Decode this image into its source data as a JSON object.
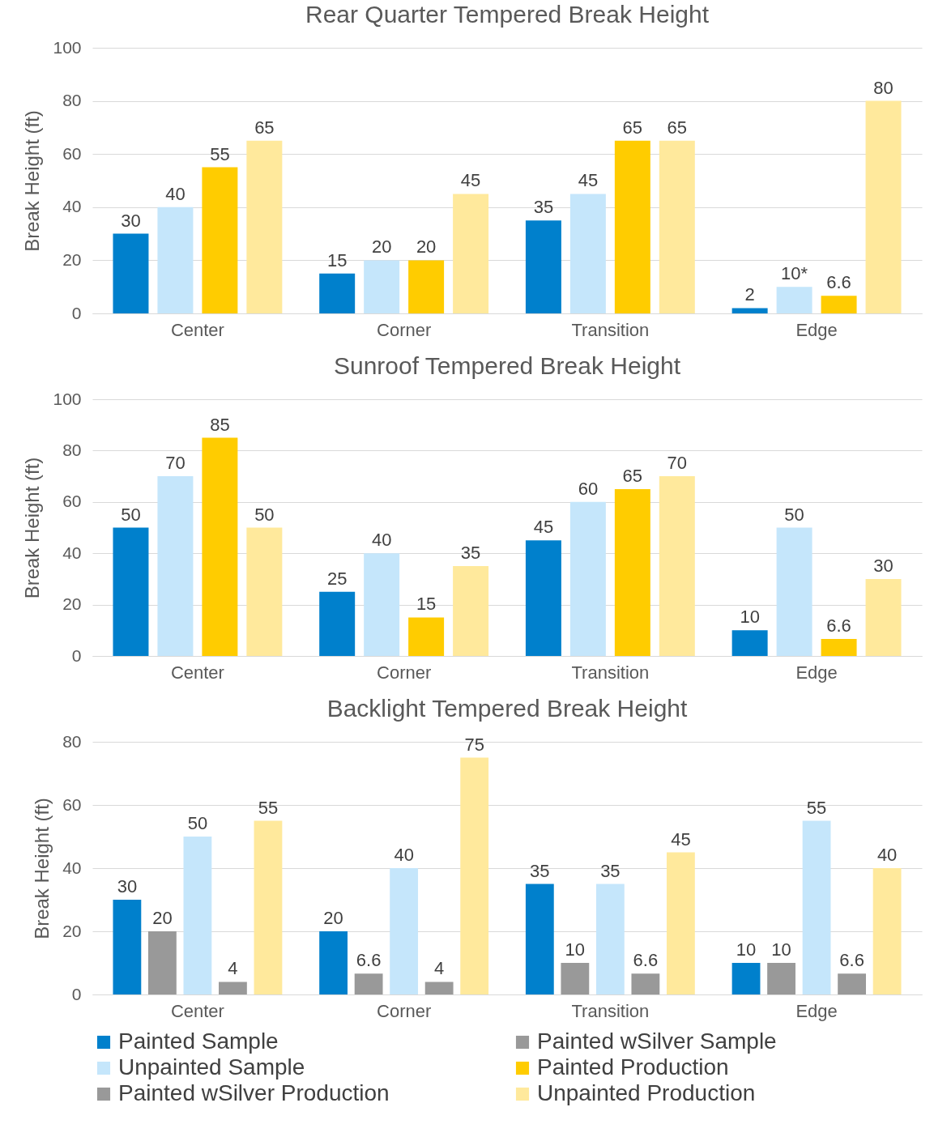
{
  "chart_data": [
    {
      "type": "bar",
      "title": "Rear Quarter Tempered Break Height",
      "ylabel": "Break Height (ft)",
      "categories": [
        "Center",
        "Corner",
        "Transition",
        "Edge"
      ],
      "ylim": [
        0,
        100
      ],
      "yticks": [
        0,
        20,
        40,
        60,
        80,
        100
      ],
      "grid": "y",
      "legend": false,
      "data_labels": true,
      "series": [
        {
          "color": "#0080cc",
          "values": [
            30,
            15,
            35,
            2
          ]
        },
        {
          "color": "#c5e6fb",
          "values": [
            40,
            20,
            45,
            10
          ],
          "value_labels": [
            "40",
            "20",
            "45",
            "10*"
          ]
        },
        {
          "color": "#ffcc00",
          "values": [
            55,
            20,
            65,
            6.6
          ]
        },
        {
          "color": "#ffe99c",
          "values": [
            65,
            45,
            65,
            80
          ]
        }
      ]
    },
    {
      "type": "bar",
      "title": "Sunroof Tempered Break Height",
      "ylabel": "Break Height (ft)",
      "categories": [
        "Center",
        "Corner",
        "Transition",
        "Edge"
      ],
      "ylim": [
        0,
        100
      ],
      "yticks": [
        0,
        20,
        40,
        60,
        80,
        100
      ],
      "grid": "y",
      "legend": false,
      "data_labels": true,
      "series": [
        {
          "color": "#0080cc",
          "values": [
            50,
            25,
            45,
            10
          ]
        },
        {
          "color": "#c5e6fb",
          "values": [
            70,
            40,
            60,
            50
          ]
        },
        {
          "color": "#ffcc00",
          "values": [
            85,
            15,
            65,
            6.6
          ]
        },
        {
          "color": "#ffe99c",
          "values": [
            50,
            35,
            70,
            30
          ]
        }
      ]
    },
    {
      "type": "bar",
      "title": "Backlight Tempered Break Height",
      "ylabel": "Break Height (ft)",
      "categories": [
        "Center",
        "Corner",
        "Transition",
        "Edge"
      ],
      "ylim": [
        0,
        80
      ],
      "yticks": [
        0,
        20,
        40,
        60,
        80
      ],
      "grid": "y",
      "legend": "bottom",
      "data_labels": true,
      "series": [
        {
          "name": "Painted Sample",
          "color": "#0080cc",
          "values": [
            30,
            20,
            35,
            10
          ]
        },
        {
          "name": "Painted wSilver Sample",
          "color": "#999999",
          "values": [
            20,
            6.6,
            10,
            10
          ]
        },
        {
          "name": "Unpainted Sample",
          "color": "#c5e6fb",
          "values": [
            50,
            40,
            35,
            55
          ]
        },
        {
          "name": "Painted Production",
          "color": "#ffcc00",
          "values": [
            null,
            null,
            null,
            null
          ]
        },
        {
          "name": "Painted wSilver Production",
          "color": "#999999",
          "values": [
            4,
            4,
            6.6,
            6.6
          ]
        },
        {
          "name": "Unpainted Production",
          "color": "#ffe99c",
          "values": [
            55,
            75,
            45,
            40
          ]
        }
      ]
    }
  ]
}
